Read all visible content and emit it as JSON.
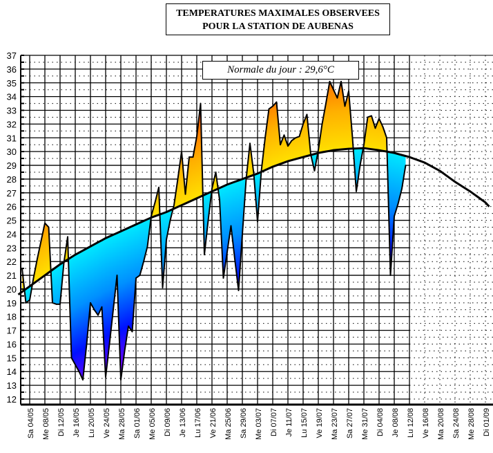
{
  "chart_data": {
    "type": "area",
    "title": [
      "TEMPERATURES MAXIMALES OBSERVEES",
      "POUR LA STATION DE AUBENAS"
    ],
    "annotation": "Normale du jour : 29,6°C",
    "ylim": [
      12,
      37
    ],
    "yticks": [
      12,
      13,
      14,
      15,
      16,
      17,
      18,
      19,
      20,
      21,
      22,
      23,
      24,
      25,
      26,
      27,
      28,
      29,
      30,
      31,
      32,
      33,
      34,
      35,
      36,
      37
    ],
    "grid": true,
    "xtick_labels": [
      "Sa 04/05",
      "Me 08/05",
      "Di 12/05",
      "Je 16/05",
      "Lu 20/05",
      "Ve 24/05",
      "Ma 28/05",
      "Sa 01/06",
      "Me 05/06",
      "Di 09/06",
      "Je 13/06",
      "Lu 17/06",
      "Ve 21/06",
      "Ma 25/06",
      "Sa 29/06",
      "Me 03/07",
      "Di 07/07",
      "Je 11/07",
      "Lu 15/07",
      "Ve 19/07",
      "Ma 23/07",
      "Sa 27/07",
      "Me 31/07",
      "Di 04/08",
      "Je 08/08",
      "Lu 12/08",
      "Ve 16/08",
      "Ma 20/08",
      "Sa 24/08",
      "Me 28/08",
      "Di 01/09"
    ],
    "observed": {
      "dates": [
        "02/05",
        "03/05",
        "04/05",
        "05/05",
        "06/05",
        "07/05",
        "08/05",
        "09/05",
        "10/05",
        "11/05",
        "12/05",
        "13/05",
        "14/05",
        "15/05",
        "16/05",
        "17/05",
        "18/05",
        "19/05",
        "20/05",
        "21/05",
        "22/05",
        "23/05",
        "24/05",
        "25/05",
        "26/05",
        "27/05",
        "28/05",
        "29/05",
        "30/05",
        "31/05",
        "01/06",
        "02/06",
        "03/06",
        "04/06",
        "05/06",
        "06/06",
        "07/06",
        "08/06",
        "09/06",
        "10/06",
        "11/06",
        "12/06",
        "13/06",
        "14/06",
        "15/06",
        "16/06",
        "17/06",
        "18/06",
        "19/06",
        "20/06",
        "21/06",
        "22/06",
        "23/06",
        "24/06",
        "25/06",
        "26/06",
        "27/06",
        "28/06",
        "29/06",
        "30/06",
        "01/07",
        "02/07",
        "03/07",
        "04/07",
        "05/07",
        "06/07",
        "07/07",
        "08/07",
        "09/07",
        "10/07",
        "11/07",
        "12/07",
        "13/07",
        "14/07",
        "15/07",
        "16/07",
        "17/07",
        "18/07",
        "19/07",
        "20/07",
        "21/07",
        "22/07",
        "23/07",
        "24/07",
        "25/07",
        "26/07",
        "27/07",
        "28/07",
        "29/07",
        "30/07",
        "31/07",
        "01/08",
        "02/08",
        "03/08",
        "04/08",
        "05/08",
        "06/08",
        "07/08",
        "08/08",
        "09/08",
        "10/08",
        "11/08"
      ],
      "values": [
        21.5,
        19.0,
        19.2,
        20.8,
        22.2,
        23.5,
        24.8,
        24.5,
        19.0,
        18.9,
        18.9,
        21.9,
        23.8,
        15.0,
        14.5,
        14.0,
        13.4,
        16.0,
        19.0,
        18.5,
        18.1,
        18.7,
        13.6,
        16.0,
        18.5,
        21.0,
        13.4,
        15.5,
        17.3,
        16.9,
        20.8,
        21.0,
        22.0,
        23.1,
        25.3,
        26.3,
        27.4,
        20.1,
        23.6,
        25.0,
        26.1,
        28.0,
        30.0,
        26.9,
        29.6,
        29.6,
        31.1,
        33.5,
        22.5,
        25.0,
        27.3,
        28.5,
        26.5,
        20.8,
        22.7,
        24.6,
        22.2,
        19.9,
        24.0,
        28.0,
        30.6,
        28.4,
        24.9,
        28.6,
        31.0,
        33.1,
        33.3,
        33.6,
        30.5,
        31.2,
        30.4,
        30.8,
        31.0,
        31.1,
        32.0,
        32.7,
        29.8,
        28.6,
        30.1,
        32.0,
        33.5,
        35.1,
        34.5,
        33.9,
        35.1,
        33.3,
        34.4,
        31.0,
        27.1,
        29.0,
        30.5,
        32.5,
        32.6,
        31.7,
        32.4,
        31.8,
        31.0,
        21.0,
        25.3,
        26.2,
        27.3,
        29.0
      ]
    },
    "normal": {
      "dates": [
        "01/05",
        "04/05",
        "08/05",
        "12/05",
        "16/05",
        "20/05",
        "24/05",
        "28/05",
        "01/06",
        "05/06",
        "09/06",
        "13/06",
        "17/06",
        "21/06",
        "25/06",
        "29/06",
        "03/07",
        "07/07",
        "11/07",
        "15/07",
        "19/07",
        "23/07",
        "27/07",
        "31/07",
        "04/08",
        "08/08",
        "12/08",
        "16/08",
        "20/08",
        "24/08",
        "28/08",
        "01/09",
        "02/09"
      ],
      "values": [
        19.6,
        20.2,
        21.0,
        21.8,
        22.5,
        23.1,
        23.7,
        24.2,
        24.7,
        25.2,
        25.6,
        26.1,
        26.6,
        27.1,
        27.6,
        28.0,
        28.4,
        28.9,
        29.3,
        29.6,
        29.9,
        30.1,
        30.2,
        30.25,
        30.1,
        29.9,
        29.6,
        29.2,
        28.6,
        27.8,
        27.1,
        26.3,
        26.0
      ]
    },
    "colors": {
      "above_normal": [
        "#ffe000",
        "#ffb000",
        "#ff7000",
        "#ff1000"
      ],
      "below_normal": [
        "#00e8ff",
        "#0090ff",
        "#0010ff",
        "#a000ff"
      ],
      "lines": "#000000"
    }
  }
}
